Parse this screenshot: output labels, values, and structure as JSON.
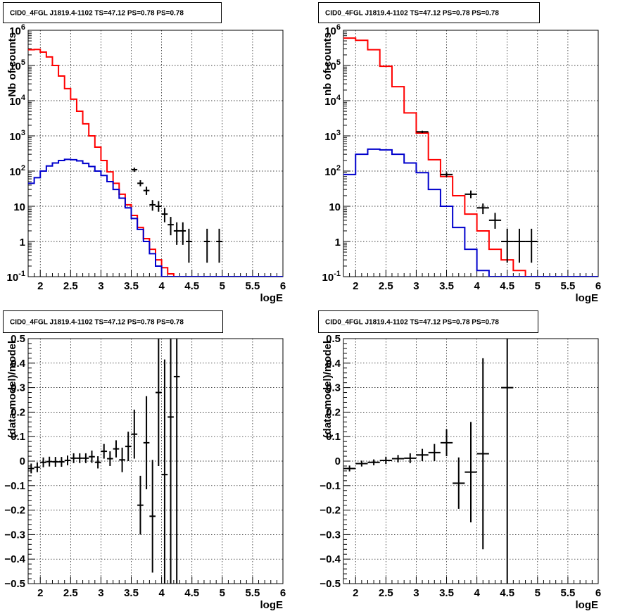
{
  "chart_data": [
    {
      "type": "histogram",
      "title": "CID0_4FGL J1819.4-1102 TS=47.12 PS=0.78 PS=0.78",
      "xlabel": "logE",
      "ylabel": "Nb of counts",
      "xlim": [
        1.8,
        6.0
      ],
      "ylim": [
        0.1,
        1000000
      ],
      "yscale": "log",
      "grid": true,
      "x_ticks": [
        "2",
        "2.5",
        "3",
        "3.5",
        "4",
        "4.5",
        "5",
        "5.5",
        "6"
      ],
      "y_ticks": [
        {
          "base": "10",
          "exp": "-1",
          "value": 0.1
        },
        {
          "base": "1",
          "exp": "",
          "value": 1
        },
        {
          "base": "10",
          "exp": "",
          "value": 10
        },
        {
          "base": "10",
          "exp": "2",
          "value": 100
        },
        {
          "base": "10",
          "exp": "3",
          "value": 1000
        },
        {
          "base": "10",
          "exp": "4",
          "value": 10000
        },
        {
          "base": "10",
          "exp": "5",
          "value": 100000
        },
        {
          "base": "10",
          "exp": "6",
          "value": 1000000
        }
      ],
      "bin_edges": [
        1.8,
        1.9,
        2.0,
        2.1,
        2.2,
        2.3,
        2.4,
        2.5,
        2.6,
        2.7,
        2.8,
        2.9,
        3.0,
        3.1,
        3.2,
        3.3,
        3.4,
        3.5,
        3.6,
        3.7,
        3.8,
        3.9,
        4.0,
        4.1,
        4.2,
        4.3,
        4.4,
        4.5,
        4.6,
        4.7,
        4.8,
        4.9,
        5.0,
        5.1,
        5.2,
        5.3,
        5.4,
        5.5,
        5.6,
        5.7,
        5.8,
        5.9,
        6.0
      ],
      "series": [
        {
          "color": "#ff0000",
          "values": [
            280000,
            285000,
            240000,
            175000,
            100000,
            50000,
            22000,
            11000,
            5000,
            2200,
            1000,
            480,
            200,
            95,
            45,
            22,
            11,
            5.5,
            2.5,
            1.2,
            0.6,
            0.3,
            0.18,
            0.12,
            0.1,
            0.1,
            0.1,
            0.1,
            0.1,
            0.1,
            0.1,
            0.1,
            0.1,
            0.1,
            0.1,
            0.1,
            0.1,
            0.1,
            0.1,
            0.1,
            0.1,
            0.1
          ]
        },
        {
          "color": "#0000cc",
          "values": [
            45,
            65,
            100,
            140,
            170,
            200,
            215,
            210,
            195,
            165,
            135,
            100,
            75,
            50,
            30,
            17,
            9,
            4.5,
            2.2,
            1,
            0.45,
            0.2,
            0.1,
            0.1,
            0.1,
            0.1,
            0.1,
            0.1,
            0.1,
            0.1,
            0.1,
            0.1,
            0.1,
            0.1,
            0.1,
            0.1,
            0.1,
            0.1,
            0.1,
            0.1,
            0.1,
            0.1
          ]
        }
      ],
      "data_points": [
        {
          "x": 3.55,
          "y": 110,
          "ylo": 95,
          "yhi": 125,
          "xerr": 0.05
        },
        {
          "x": 3.65,
          "y": 45,
          "ylo": 37,
          "yhi": 55,
          "xerr": 0.05
        },
        {
          "x": 3.75,
          "y": 28,
          "ylo": 21,
          "yhi": 36,
          "xerr": 0.05
        },
        {
          "x": 3.85,
          "y": 11,
          "ylo": 7.5,
          "yhi": 15,
          "xerr": 0.05
        },
        {
          "x": 3.95,
          "y": 10,
          "ylo": 7,
          "yhi": 14,
          "xerr": 0.05
        },
        {
          "x": 4.05,
          "y": 6,
          "ylo": 3.5,
          "yhi": 9,
          "xerr": 0.05
        },
        {
          "x": 4.15,
          "y": 3,
          "ylo": 1.5,
          "yhi": 5,
          "xerr": 0.05
        },
        {
          "x": 4.25,
          "y": 2,
          "ylo": 0.8,
          "yhi": 3.5,
          "xerr": 0.05
        },
        {
          "x": 4.35,
          "y": 2,
          "ylo": 0.8,
          "yhi": 3.5,
          "xerr": 0.05
        },
        {
          "x": 4.45,
          "y": 1,
          "ylo": 0.25,
          "yhi": 2.3,
          "xerr": 0.05
        },
        {
          "x": 4.75,
          "y": 1,
          "ylo": 0.25,
          "yhi": 2.3,
          "xerr": 0.05
        },
        {
          "x": 4.95,
          "y": 1,
          "ylo": 0.25,
          "yhi": 2.3,
          "xerr": 0.05
        }
      ]
    },
    {
      "type": "histogram",
      "title": "CID0_4FGL J1819.4-1102 TS=47.12 PS=0.78 PS=0.78",
      "xlabel": "logE",
      "ylabel": "nb of counts",
      "xlim": [
        1.8,
        6.0
      ],
      "ylim": [
        0.1,
        1000000
      ],
      "yscale": "log",
      "grid": true,
      "x_ticks": [
        "2",
        "2.5",
        "3",
        "3.5",
        "4",
        "4.5",
        "5",
        "5.5",
        "6"
      ],
      "y_ticks": [
        {
          "base": "10",
          "exp": "-1",
          "value": 0.1
        },
        {
          "base": "1",
          "exp": "",
          "value": 1
        },
        {
          "base": "10",
          "exp": "",
          "value": 10
        },
        {
          "base": "10",
          "exp": "2",
          "value": 100
        },
        {
          "base": "10",
          "exp": "3",
          "value": 1000
        },
        {
          "base": "10",
          "exp": "4",
          "value": 10000
        },
        {
          "base": "10",
          "exp": "5",
          "value": 100000
        },
        {
          "base": "10",
          "exp": "6",
          "value": 1000000
        }
      ],
      "bin_edges": [
        1.8,
        2.0,
        2.2,
        2.4,
        2.6,
        2.8,
        3.0,
        3.2,
        3.4,
        3.6,
        3.8,
        4.0,
        4.2,
        4.4,
        4.6,
        4.8,
        5.0,
        5.2,
        5.4,
        5.6,
        5.8,
        6.0
      ],
      "series": [
        {
          "color": "#ff0000",
          "values": [
            600000,
            520000,
            280000,
            95000,
            25000,
            4500,
            1200,
            210,
            70,
            20,
            6,
            2,
            0.6,
            0.3,
            0.15,
            0.1,
            0.1,
            0.1,
            0.1,
            0.1,
            0.1
          ]
        },
        {
          "color": "#0000cc",
          "values": [
            80,
            300,
            420,
            400,
            300,
            170,
            90,
            30,
            10,
            2.5,
            0.6,
            0.15,
            0.1,
            0.1,
            0.1,
            0.1,
            0.1,
            0.1,
            0.1,
            0.1,
            0.1
          ]
        }
      ],
      "data_points": [
        {
          "x": 3.1,
          "y": 1300,
          "ylo": 1200,
          "yhi": 1400,
          "xerr": 0.1
        },
        {
          "x": 3.5,
          "y": 80,
          "ylo": 68,
          "yhi": 92,
          "xerr": 0.1
        },
        {
          "x": 3.9,
          "y": 22,
          "ylo": 17,
          "yhi": 28,
          "xerr": 0.1
        },
        {
          "x": 4.1,
          "y": 9,
          "ylo": 6,
          "yhi": 12,
          "xerr": 0.1
        },
        {
          "x": 4.3,
          "y": 4,
          "ylo": 2.3,
          "yhi": 6.5,
          "xerr": 0.1
        },
        {
          "x": 4.5,
          "y": 1,
          "ylo": 0.25,
          "yhi": 2.3,
          "xerr": 0.1
        },
        {
          "x": 4.7,
          "y": 1,
          "ylo": 0.25,
          "yhi": 2.3,
          "xerr": 0.1
        },
        {
          "x": 4.9,
          "y": 1,
          "ylo": 0.25,
          "yhi": 2.3,
          "xerr": 0.1
        }
      ]
    },
    {
      "type": "scatter",
      "title": "CID0_4FGL J1819.4-1102 TS=47.12 PS=0.78 PS=0.78",
      "xlabel": "logE",
      "ylabel": "(data-model)/model",
      "xlim": [
        1.8,
        6.0
      ],
      "ylim": [
        -0.5,
        0.5
      ],
      "grid": true,
      "x_ticks": [
        "2",
        "2.5",
        "3",
        "3.5",
        "4",
        "4.5",
        "5",
        "5.5",
        "6"
      ],
      "y_ticks": [
        "−0.5",
        "−0.4",
        "−0.3",
        "−0.2",
        "−0.1",
        "0",
        "0.1",
        "0.2",
        "0.3",
        "0.4",
        "0.5"
      ],
      "points": [
        {
          "x": 1.85,
          "y": -0.03,
          "err": 0.02,
          "xerr": 0.05
        },
        {
          "x": 1.95,
          "y": -0.025,
          "err": 0.02,
          "xerr": 0.05
        },
        {
          "x": 2.05,
          "y": -0.005,
          "err": 0.02,
          "xerr": 0.05
        },
        {
          "x": 2.15,
          "y": -0.002,
          "err": 0.02,
          "xerr": 0.05
        },
        {
          "x": 2.25,
          "y": -0.003,
          "err": 0.02,
          "xerr": 0.05
        },
        {
          "x": 2.35,
          "y": -0.003,
          "err": 0.02,
          "xerr": 0.05
        },
        {
          "x": 2.45,
          "y": 0.003,
          "err": 0.02,
          "xerr": 0.05
        },
        {
          "x": 2.55,
          "y": 0.012,
          "err": 0.02,
          "xerr": 0.05
        },
        {
          "x": 2.65,
          "y": 0.012,
          "err": 0.02,
          "xerr": 0.05
        },
        {
          "x": 2.75,
          "y": 0.012,
          "err": 0.02,
          "xerr": 0.05
        },
        {
          "x": 2.85,
          "y": 0.018,
          "err": 0.025,
          "xerr": 0.05
        },
        {
          "x": 2.95,
          "y": -0.005,
          "err": 0.025,
          "xerr": 0.05
        },
        {
          "x": 3.05,
          "y": 0.04,
          "err": 0.03,
          "xerr": 0.05
        },
        {
          "x": 3.15,
          "y": 0.01,
          "err": 0.03,
          "xerr": 0.05
        },
        {
          "x": 3.25,
          "y": 0.05,
          "err": 0.035,
          "xerr": 0.05
        },
        {
          "x": 3.35,
          "y": 0.005,
          "err": 0.05,
          "xerr": 0.05
        },
        {
          "x": 3.45,
          "y": 0.06,
          "err": 0.06,
          "xerr": 0.05
        },
        {
          "x": 3.55,
          "y": 0.11,
          "err": 0.1,
          "xerr": 0.05
        },
        {
          "x": 3.65,
          "y": -0.18,
          "err": 0.12,
          "xerr": 0.05
        },
        {
          "x": 3.75,
          "y": 0.075,
          "err": 0.19,
          "xerr": 0.05
        },
        {
          "x": 3.85,
          "y": -0.225,
          "err": 0.23,
          "xerr": 0.05
        },
        {
          "x": 3.95,
          "y": 0.28,
          "err": 0.3,
          "xerr": 0.05
        },
        {
          "x": 4.05,
          "y": -0.055,
          "err": 0.47,
          "xerr": 0.05
        },
        {
          "x": 4.15,
          "y": 0.18,
          "err": 0.7,
          "xerr": 0.05
        },
        {
          "x": 4.25,
          "y": 0.345,
          "err": 0.9,
          "xerr": 0.05
        }
      ]
    },
    {
      "type": "scatter",
      "title": "CID0_4FGL J1819.4-1102 TS=47.12 PS=0.78 PS=0.78",
      "xlabel": "logE",
      "ylabel": "(data-model)/model",
      "xlim": [
        1.8,
        6.0
      ],
      "ylim": [
        -0.5,
        0.5
      ],
      "grid": true,
      "x_ticks": [
        "2",
        "2.5",
        "3",
        "3.5",
        "4",
        "4.5",
        "5",
        "5.5",
        "6"
      ],
      "y_ticks": [
        "−0.5",
        "−0.4",
        "−0.3",
        "−0.2",
        "−0.1",
        "0",
        "0.1",
        "0.2",
        "0.3",
        "0.4",
        "0.5"
      ],
      "points": [
        {
          "x": 1.9,
          "y": -0.03,
          "err": 0.012,
          "xerr": 0.1
        },
        {
          "x": 2.1,
          "y": -0.01,
          "err": 0.012,
          "xerr": 0.1
        },
        {
          "x": 2.3,
          "y": -0.005,
          "err": 0.012,
          "xerr": 0.1
        },
        {
          "x": 2.5,
          "y": 0.003,
          "err": 0.015,
          "xerr": 0.1
        },
        {
          "x": 2.7,
          "y": 0.01,
          "err": 0.015,
          "xerr": 0.1
        },
        {
          "x": 2.9,
          "y": 0.012,
          "err": 0.02,
          "xerr": 0.1
        },
        {
          "x": 3.1,
          "y": 0.025,
          "err": 0.025,
          "xerr": 0.1
        },
        {
          "x": 3.3,
          "y": 0.035,
          "err": 0.035,
          "xerr": 0.1
        },
        {
          "x": 3.5,
          "y": 0.075,
          "err": 0.055,
          "xerr": 0.1
        },
        {
          "x": 3.7,
          "y": -0.09,
          "err": 0.105,
          "xerr": 0.1
        },
        {
          "x": 3.9,
          "y": -0.045,
          "err": 0.205,
          "xerr": 0.1
        },
        {
          "x": 4.1,
          "y": 0.03,
          "err": 0.39,
          "xerr": 0.1
        },
        {
          "x": 4.5,
          "y": 0.3,
          "err": 0.8,
          "xerr": 0.1
        }
      ]
    }
  ]
}
